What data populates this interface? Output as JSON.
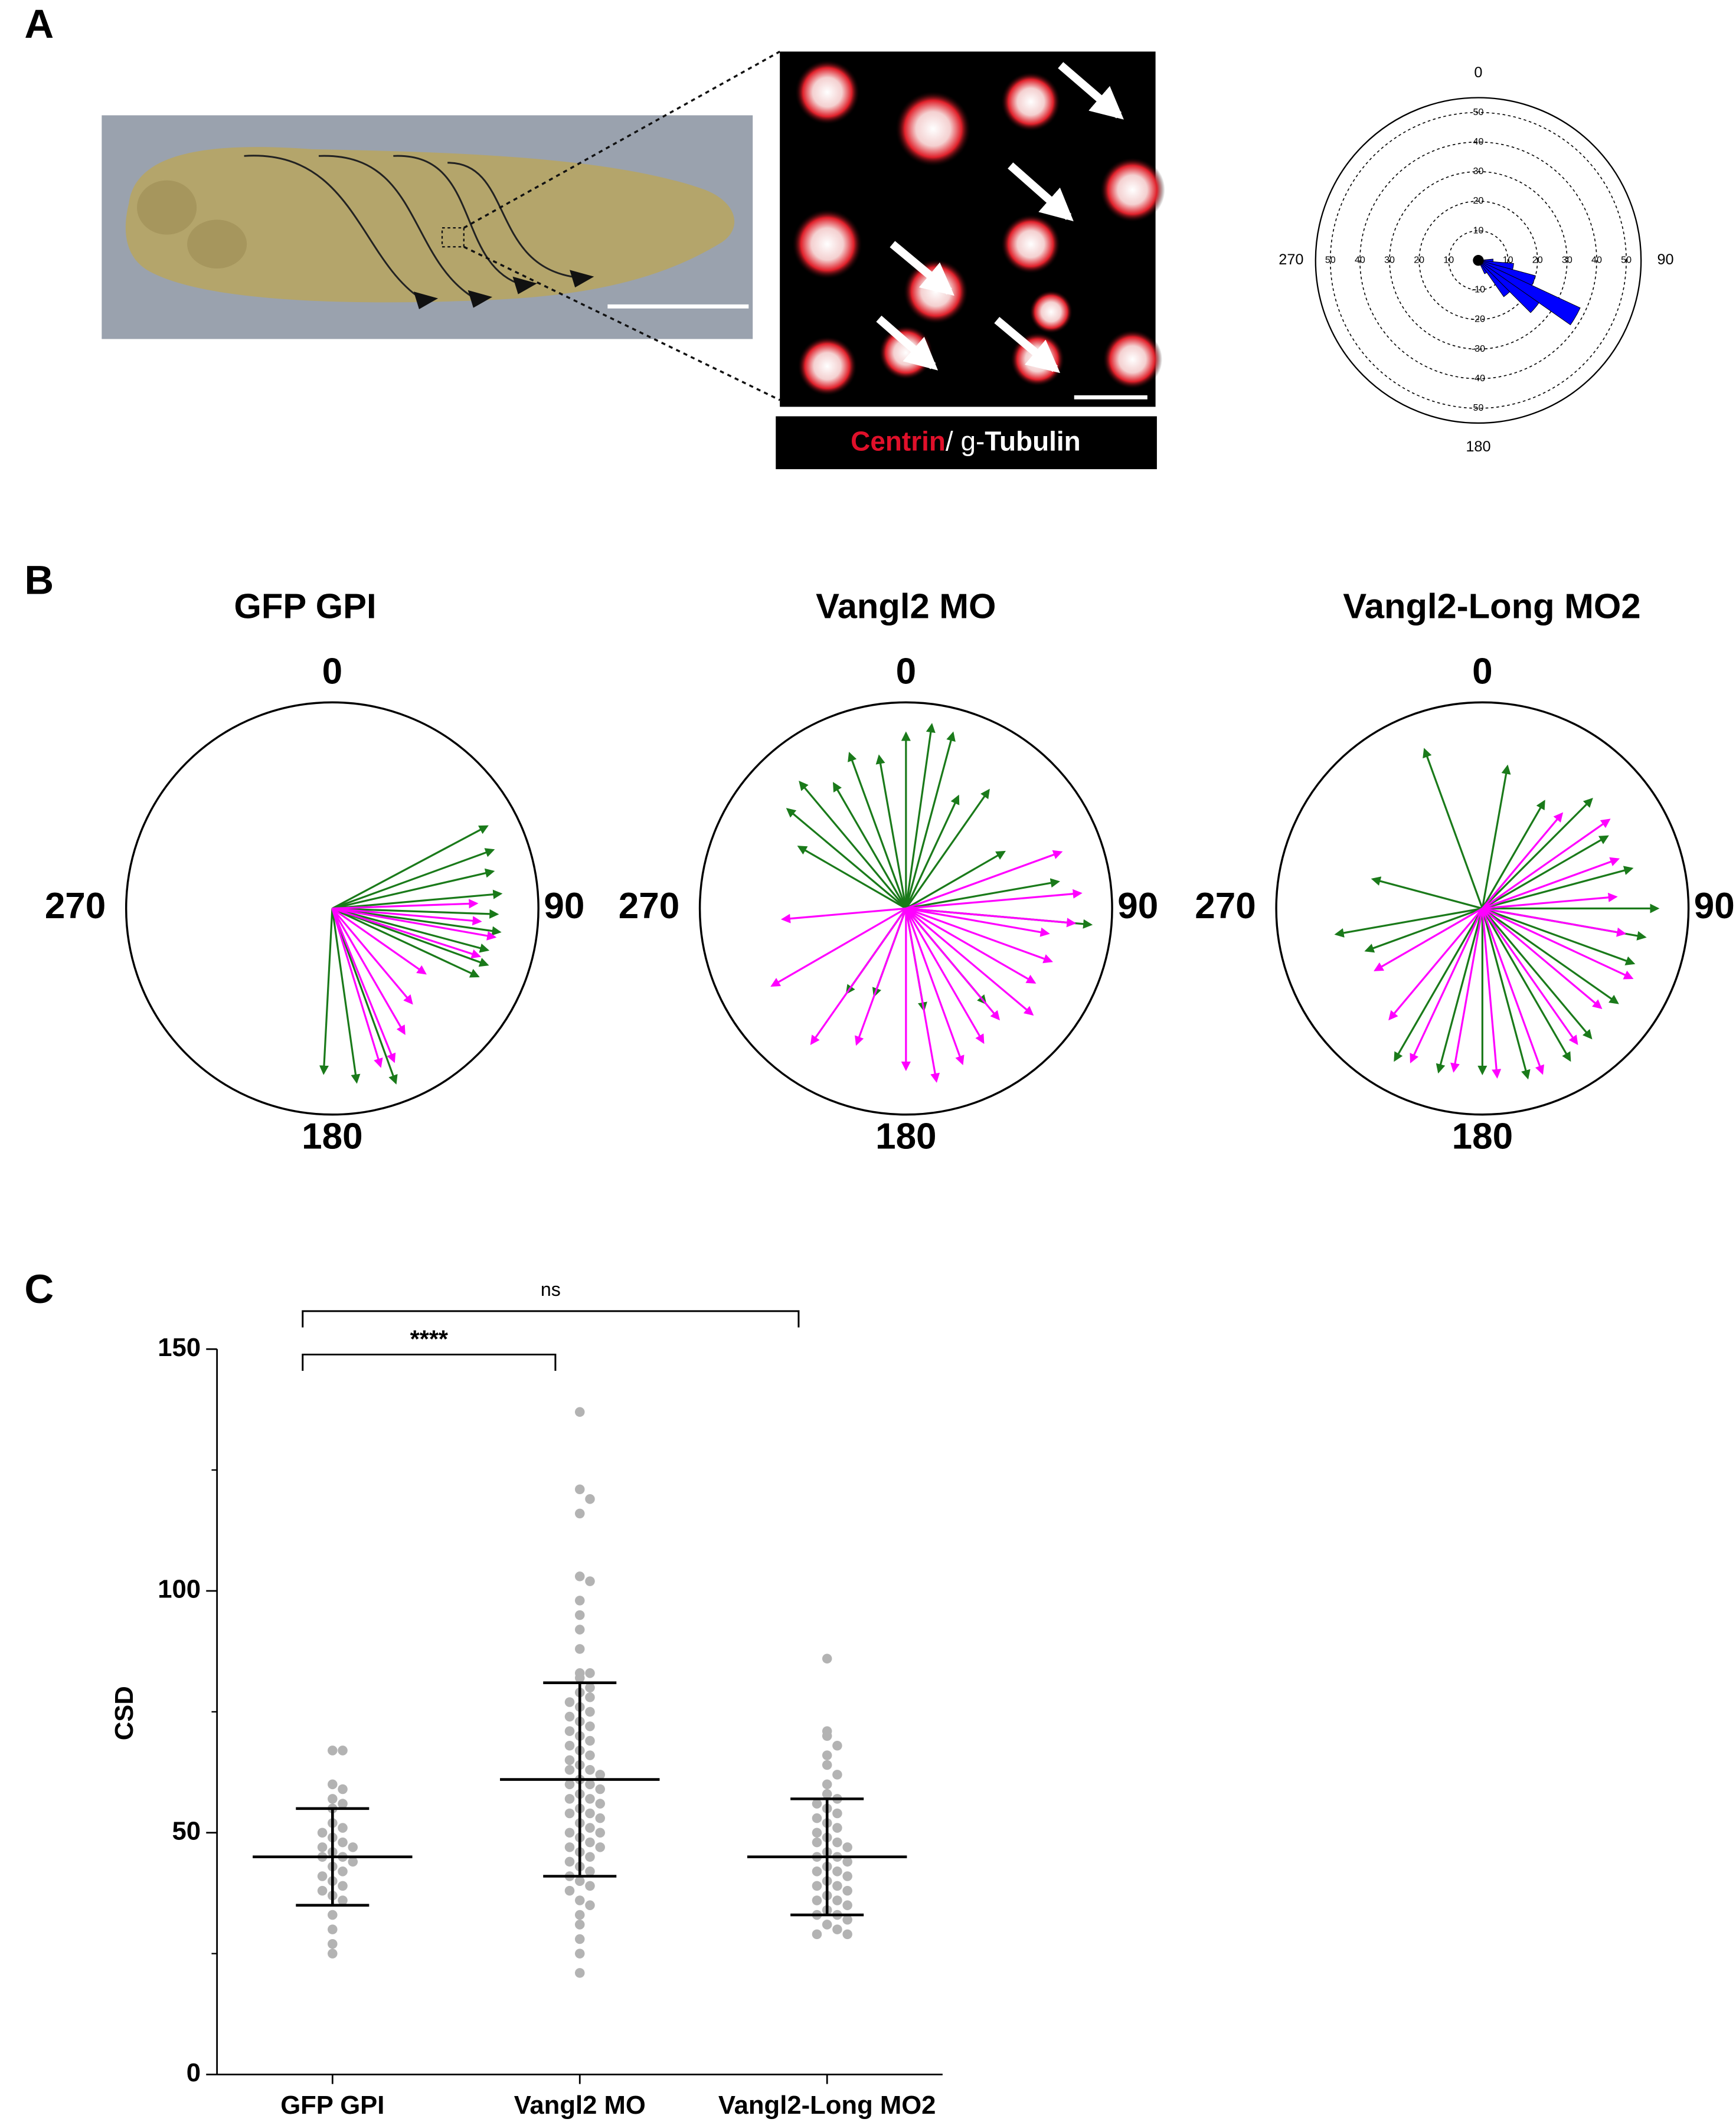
{
  "panel_labels": [
    "A",
    "B",
    "C"
  ],
  "image_caption": [
    "Centrin",
    "/ g-",
    "Tubulin"
  ],
  "chart_data": [
    {
      "type": "rose",
      "color": "#0000ff",
      "rlim": [
        0,
        55
      ],
      "angle_labels": [
        0,
        90,
        180,
        270
      ],
      "rticks": [
        10,
        20,
        30,
        40,
        50
      ],
      "rticks_below": [
        {
          "value": 10,
          "label": "-10"
        },
        {
          "value": 20,
          "label": "-20"
        },
        {
          "value": 30,
          "label": "-30"
        },
        {
          "value": 40,
          "label": "-40"
        },
        50
      ],
      "bins": [
        90,
        100,
        110,
        120,
        130,
        140,
        150
      ],
      "values": [
        5,
        12,
        20,
        38,
        25,
        15,
        5
      ]
    },
    {
      "type": "polar_arrows",
      "title": "GFP GPI",
      "angle_labels": [
        0,
        90,
        180,
        270
      ],
      "rlim": [
        0,
        1
      ],
      "series": [
        {
          "color": "#1a7a1a",
          "angles": [
            62,
            70,
            77,
            85,
            92,
            98,
            105,
            110,
            115,
            160,
            172,
            183
          ],
          "lengths": [
            0.85,
            0.83,
            0.8,
            0.82,
            0.8,
            0.82,
            0.78,
            0.8,
            0.78,
            0.9,
            0.85,
            0.8
          ]
        },
        {
          "color": "#ff00ff",
          "angles": [
            88,
            95,
            100,
            108,
            125,
            140,
            150,
            158,
            163
          ],
          "lengths": [
            0.7,
            0.72,
            0.8,
            0.75,
            0.55,
            0.6,
            0.7,
            0.8,
            0.8
          ]
        }
      ]
    },
    {
      "type": "polar_arrows",
      "title": "Vangl2 MO",
      "angle_labels": [
        0,
        90,
        180,
        270
      ],
      "rlim": [
        0,
        1
      ],
      "series": [
        {
          "color": "#1a7a1a",
          "angles": [
            300,
            310,
            320,
            330,
            340,
            350,
            0,
            8,
            15,
            25,
            35,
            60,
            80,
            95,
            140,
            170,
            200,
            215
          ],
          "lengths": [
            0.6,
            0.75,
            0.8,
            0.7,
            0.8,
            0.75,
            0.85,
            0.9,
            0.88,
            0.6,
            0.7,
            0.55,
            0.75,
            0.9,
            0.6,
            0.5,
            0.45,
            0.5
          ]
        },
        {
          "color": "#ff00ff",
          "angles": [
            70,
            85,
            95,
            100,
            110,
            120,
            130,
            140,
            150,
            160,
            170,
            180,
            200,
            215,
            240,
            265
          ],
          "lengths": [
            0.8,
            0.85,
            0.82,
            0.7,
            0.75,
            0.72,
            0.8,
            0.7,
            0.75,
            0.8,
            0.85,
            0.78,
            0.7,
            0.8,
            0.75,
            0.6
          ]
        }
      ]
    },
    {
      "type": "polar_arrows",
      "title": "Vangl2-Long MO2",
      "angle_labels": [
        0,
        90,
        180,
        270
      ],
      "rlim": [
        0,
        1
      ],
      "series": [
        {
          "color": "#1a7a1a",
          "angles": [
            340,
            10,
            30,
            45,
            60,
            75,
            90,
            100,
            110,
            125,
            140,
            150,
            165,
            180,
            195,
            210,
            250,
            260,
            285
          ],
          "lengths": [
            0.82,
            0.7,
            0.6,
            0.75,
            0.7,
            0.75,
            0.85,
            0.8,
            0.78,
            0.8,
            0.82,
            0.85,
            0.85,
            0.8,
            0.82,
            0.85,
            0.6,
            0.72,
            0.55
          ]
        },
        {
          "color": "#ff00ff",
          "angles": [
            40,
            55,
            70,
            85,
            100,
            115,
            130,
            145,
            160,
            175,
            190,
            205,
            220,
            240
          ],
          "lengths": [
            0.6,
            0.75,
            0.7,
            0.65,
            0.7,
            0.8,
            0.75,
            0.8,
            0.85,
            0.82,
            0.8,
            0.82,
            0.7,
            0.6
          ]
        }
      ]
    },
    {
      "type": "dot_plot",
      "y_label": "CSD",
      "color": "#b3b3b3",
      "categories": [
        "GFP GPI",
        "Vangl2 MO",
        "Vangl2-Long MO2"
      ],
      "ylim": [
        0,
        150
      ],
      "yticks": [
        0,
        50,
        100,
        150
      ],
      "yminor_ticks": [
        25,
        75,
        125
      ],
      "means": [
        45,
        61,
        45
      ],
      "sd": [
        10,
        20,
        12
      ],
      "annotations": [
        "****",
        "ns"
      ],
      "points": [
        [
          67,
          67,
          60,
          59,
          57,
          56,
          55,
          52,
          51,
          50,
          49,
          48,
          47,
          47,
          46,
          45,
          45,
          44,
          43,
          42,
          41,
          40,
          39,
          38,
          37,
          36,
          33,
          30,
          27,
          25
        ],
        [
          137,
          121,
          119,
          116,
          103,
          102,
          98,
          95,
          92,
          88,
          83,
          83,
          82,
          80,
          79,
          78,
          77,
          76,
          75,
          74,
          73,
          72,
          71,
          70,
          69,
          68,
          67,
          66,
          65,
          64,
          63,
          63,
          62,
          61,
          60,
          60,
          59,
          58,
          57,
          57,
          56,
          55,
          54,
          54,
          53,
          52,
          51,
          50,
          50,
          49,
          48,
          47,
          47,
          46,
          45,
          44,
          43,
          42,
          41,
          40,
          39,
          38,
          36,
          35,
          33,
          31,
          28,
          25,
          21
        ],
        [
          86,
          71,
          70,
          68,
          66,
          64,
          62,
          60,
          58,
          57,
          56,
          55,
          54,
          53,
          52,
          51,
          50,
          49,
          48,
          48,
          47,
          46,
          45,
          45,
          44,
          43,
          42,
          42,
          41,
          40,
          39,
          39,
          38,
          37,
          36,
          36,
          35,
          34,
          33,
          33,
          32,
          31,
          30,
          29,
          29
        ]
      ]
    }
  ]
}
